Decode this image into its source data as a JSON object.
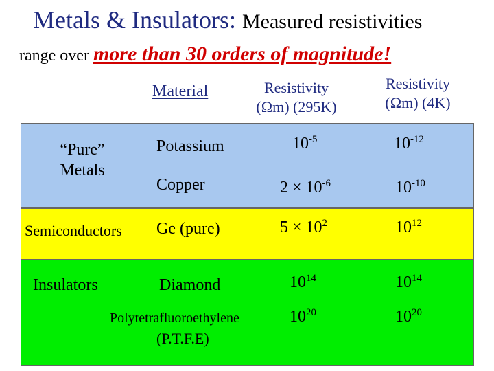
{
  "title": {
    "main": "Metals & Insulators:",
    "rest": "Measured resistivities",
    "line2_prefix": "range over",
    "line2_emphasis": "more than 30 orders of magnitude!"
  },
  "headers": {
    "material": "Material",
    "r295_line1": "Resistivity",
    "r295_line2": "(Ωm) (295K)",
    "r4_line1": "Resistivity",
    "r4_line2": "(Ωm) (4K)"
  },
  "categories": {
    "pure_metals_line1": "“Pure”",
    "pure_metals_line2": "Metals",
    "semiconductors": "Semiconductors",
    "insulators": "Insulators"
  },
  "colors": {
    "metals_band": "#a8c8ef",
    "semiconductors_band": "#ffff00",
    "insulators_band": "#00ee00",
    "title_blue": "#1f2a80",
    "emphasis_red": "#d00000"
  },
  "rows": {
    "potassium": {
      "material": "Potassium",
      "r295_base": "10",
      "r295_exp": "-5",
      "r4_base": "10",
      "r4_exp": "-12"
    },
    "copper": {
      "material": "Copper",
      "r295_base": "2 × 10",
      "r295_exp": "-6",
      "r4_base": "10",
      "r4_exp": "-10"
    },
    "germanium": {
      "material": "Ge (pure)",
      "r295_base": "5 × 10",
      "r295_exp": "2",
      "r4_base": "10",
      "r4_exp": "12"
    },
    "diamond": {
      "material": "Diamond",
      "r295_base": "10",
      "r295_exp": "14",
      "r4_base": "10",
      "r4_exp": "14"
    },
    "ptfe": {
      "material_line1": "Polytetrafluoroethylene",
      "material_line2": "(P.T.F.E)",
      "r295_base": "10",
      "r295_exp": "20",
      "r4_base": "10",
      "r4_exp": "20"
    }
  }
}
